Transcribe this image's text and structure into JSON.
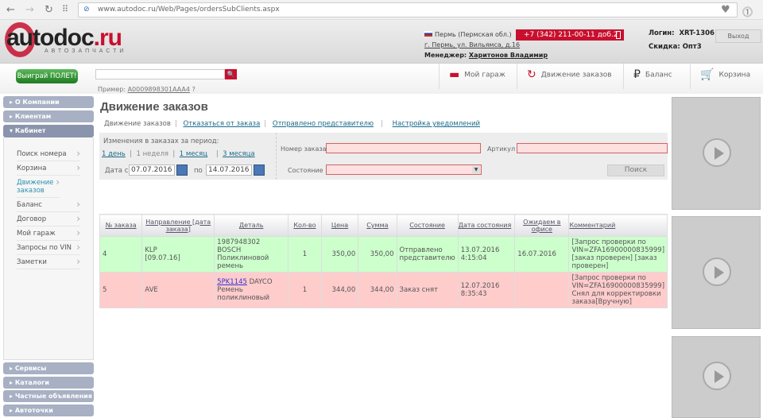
{
  "browser": {
    "url": "www.autodoc.ru/Web/Pages/ordersSubClients.aspx"
  },
  "header": {
    "logo_main": "autodoc",
    "logo_tld": ".ru",
    "logo_sub": "АВТОЗАПЧАСТИ",
    "city": "Пермь (Пермская обл.)",
    "address": "г. Пермь, ул. Вильямса, д.16",
    "manager_label": "Менеджер:",
    "manager": "Харитонов Владимир",
    "phone": "+7 (342) 211-00-11 доб.2",
    "login_label": "Логин:",
    "login": "XRT-1306",
    "discount_label": "Скидка:",
    "discount": "Опт3",
    "logout": "Выход",
    "brand_color": "#c8102e"
  },
  "nav": {
    "promo": "Выиграй ПОЛЕТ!",
    "search_placeholder": "",
    "example_label": "Пример:",
    "example": "A0009898301AAA4",
    "items": [
      {
        "label": "Мой гараж",
        "icon": "garage-icon"
      },
      {
        "label": "Движение заказов",
        "icon": "order-flow-icon"
      },
      {
        "label": "Баланс",
        "icon": "wallet-icon"
      },
      {
        "label": "Корзина",
        "icon": "cart-icon"
      }
    ]
  },
  "sidebar": {
    "top": [
      "О Компании",
      "Клиентам",
      "Кабинет"
    ],
    "items": [
      "Поиск номера",
      "Корзина",
      "Движение заказов",
      "Баланс",
      "Договор",
      "Мой гараж",
      "Запросы по VIN",
      "Заметки"
    ],
    "active": "Движение заказов",
    "bottom": [
      "Сервисы",
      "Каталоги",
      "Частные объявления",
      "Автоточки"
    ]
  },
  "main": {
    "title": "Движение заказов",
    "tabs": [
      "Движение заказов",
      "Отказаться от заказа",
      "Отправлено представителю",
      "Настройка уведомлений"
    ],
    "filter": {
      "period_label": "Изменения в заказах за период:",
      "periods": [
        "1 день",
        "1 неделя",
        "1 месяц",
        "3 месяца"
      ],
      "date_from_label": "Дата с",
      "date_from": "07.07.2016",
      "date_to_label": "по",
      "date_to": "14.07.2016",
      "order_label": "Номер заказа",
      "article_label": "Артикул",
      "status_label": "Состояние",
      "search_btn": "Поиск"
    },
    "table": {
      "headers": [
        "№ заказа",
        "Направление [дата заказа]",
        "Деталь",
        "Кол-во",
        "Цена",
        "Сумма",
        "Состояние",
        "Дата состояния",
        "Ожидаем в офисе",
        "Комментарий"
      ],
      "rows": [
        {
          "no": "4",
          "dir": "KLP",
          "dir_date": "[09.07.16]",
          "part_code": "1987948302",
          "brand": "BOSCH",
          "part_name": "Поликлиновой ремень",
          "qty": "1",
          "price": "350,00",
          "sum": "350,00",
          "status": "Отправлено представителю",
          "status_date": "13.07.2016",
          "status_time": "4:15:04",
          "expected": "16.07.2016",
          "comment": "[Запрос проверки по VIN=ZFA16900000835999] [заказ проверен] [заказ проверен]"
        },
        {
          "no": "5",
          "dir": "AVE",
          "dir_date": "",
          "part_code": "5PK1145",
          "brand": "DAYCO",
          "part_name": "Ремень поликлиновый",
          "qty": "1",
          "price": "344,00",
          "sum": "344,00",
          "status": "Заказ снят",
          "status_date": "12.07.2016",
          "status_time": "8:35:43",
          "expected": "",
          "comment": "[Запрос проверки по VIN=ZFA16900000835999] Снял для корректировки заказа[Вручную]"
        }
      ]
    }
  }
}
